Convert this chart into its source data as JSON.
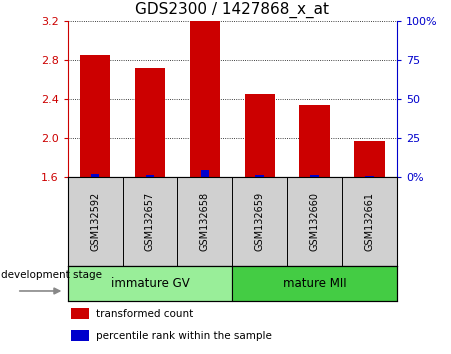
{
  "title": "GDS2300 / 1427868_x_at",
  "samples": [
    "GSM132592",
    "GSM132657",
    "GSM132658",
    "GSM132659",
    "GSM132660",
    "GSM132661"
  ],
  "red_values": [
    2.85,
    2.72,
    3.2,
    2.45,
    2.34,
    1.97
  ],
  "blue_values": [
    1.635,
    1.625,
    1.675,
    1.625,
    1.625,
    1.615
  ],
  "ylim": [
    1.6,
    3.2
  ],
  "yticks": [
    1.6,
    2.0,
    2.4,
    2.8,
    3.2
  ],
  "right_yticks": [
    0,
    25,
    50,
    75,
    100
  ],
  "right_ylabels": [
    "0%",
    "25",
    "50",
    "75",
    "100%"
  ],
  "bar_width": 0.55,
  "red_color": "#cc0000",
  "blue_color": "#0000cc",
  "groups": [
    {
      "label": "immature GV",
      "start": 0,
      "end": 2,
      "color": "#99ee99"
    },
    {
      "label": "mature MII",
      "start": 3,
      "end": 5,
      "color": "#44cc44"
    }
  ],
  "xlabel_dev": "development stage",
  "legend_items": [
    {
      "label": "transformed count",
      "color": "#cc0000"
    },
    {
      "label": "percentile rank within the sample",
      "color": "#0000cc"
    }
  ],
  "title_fontsize": 11,
  "tick_fontsize": 8,
  "label_fontsize": 8,
  "background_plot": "#ffffff",
  "background_label": "#d0d0d0",
  "left_tick_color": "#cc0000",
  "right_tick_color": "#0000cc"
}
